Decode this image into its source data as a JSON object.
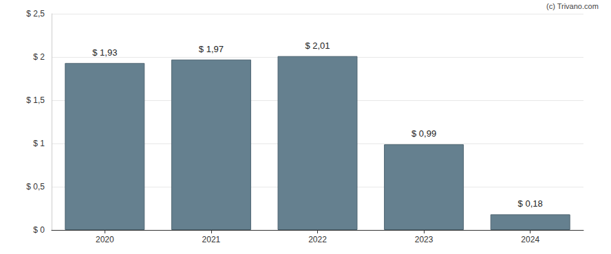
{
  "chart_data": {
    "type": "bar",
    "annotations": [
      "(c) Trivano.com"
    ],
    "categories": [
      "2020",
      "2021",
      "2022",
      "2023",
      "2024"
    ],
    "values": [
      1.93,
      1.97,
      2.01,
      0.99,
      0.18
    ],
    "value_labels": [
      "$ 1,93",
      "$ 1,97",
      "$ 2,01",
      "$ 0,99",
      "$ 0,18"
    ],
    "data_labels": true,
    "color": "#65808f",
    "ylim": [
      0,
      2.5
    ],
    "yticks": [
      {
        "value": 0,
        "label": "$ 0"
      },
      {
        "value": 0.5,
        "label": "$ 0,5"
      },
      {
        "value": 1,
        "label": "$ 1"
      },
      {
        "value": 1.5,
        "label": "$ 1,5"
      },
      {
        "value": 2,
        "label": "$ 2"
      },
      {
        "value": 2.5,
        "label": "$ 2,5"
      }
    ],
    "grid": true
  }
}
